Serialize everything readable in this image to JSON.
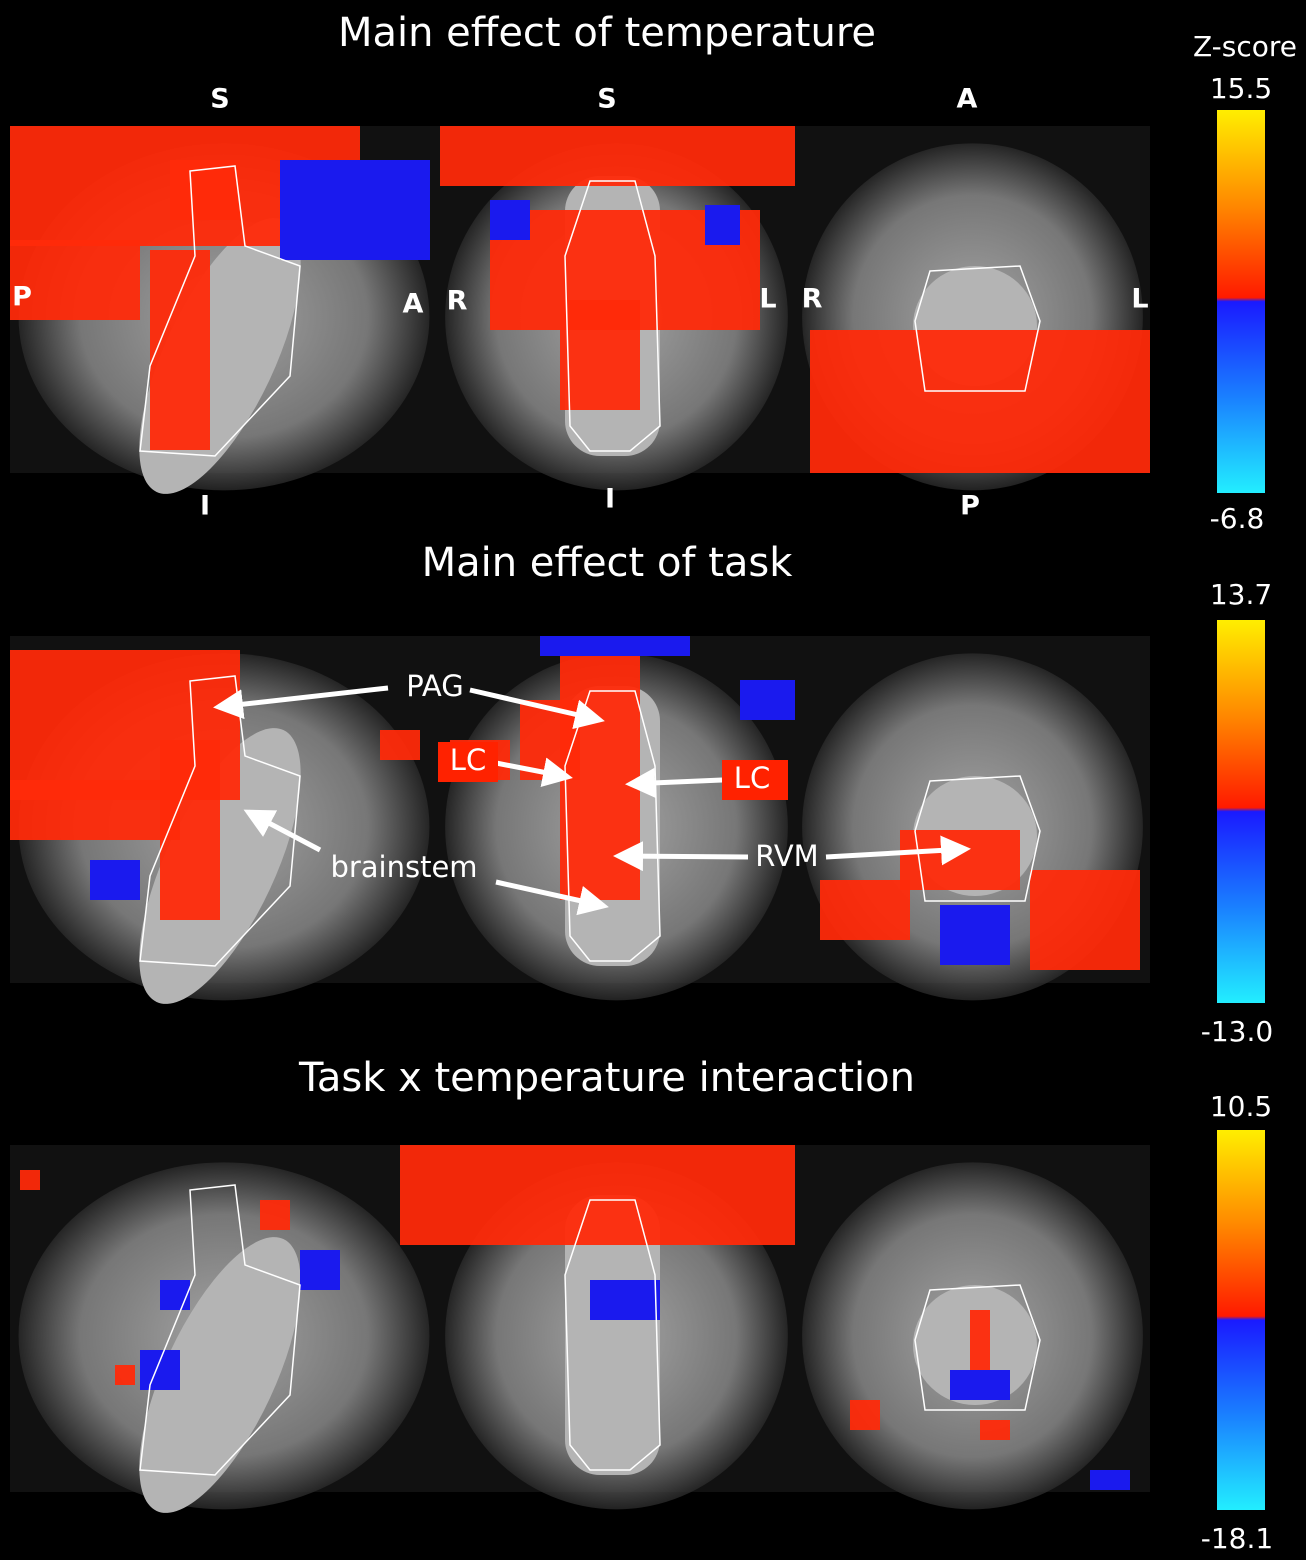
{
  "colorbar_title": "Z-score",
  "orientation_labels": {
    "sagittal": {
      "top": "S",
      "bottom": "I",
      "left": "P",
      "right": "A"
    },
    "coronal": {
      "top": "S",
      "bottom": "I",
      "left": "R",
      "right": "L"
    },
    "axial": {
      "top": "A",
      "bottom": "P",
      "left": "R",
      "right": "L"
    }
  },
  "panels": [
    {
      "title": "Main effect of temperature",
      "colorbar_max": "15.5",
      "colorbar_min": "-6.8"
    },
    {
      "title": "Main effect of task",
      "colorbar_max": "13.7",
      "colorbar_min": "-13.0"
    },
    {
      "title": "Task x temperature interaction",
      "colorbar_max": "10.5",
      "colorbar_min": "-18.1"
    }
  ],
  "annotations": {
    "pag": "PAG",
    "lc_left": "LC",
    "lc_right": "LC",
    "rvm": "RVM",
    "brainstem": "brainstem"
  }
}
